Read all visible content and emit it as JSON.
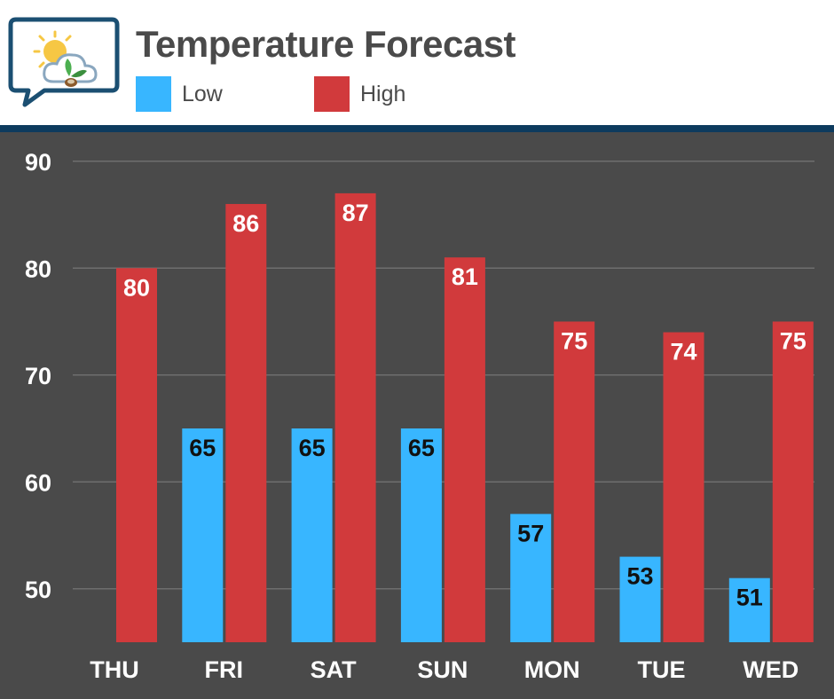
{
  "header": {
    "title": "Temperature Forecast",
    "logo_icon": "weather-leaf-logo-icon"
  },
  "colors": {
    "low": "#38b6ff",
    "high": "#d13a3c",
    "background": "#4a4a4a",
    "header_rule": "#0d3b5e",
    "title": "#4a4a4a"
  },
  "chart_data": {
    "type": "bar",
    "title": "Temperature Forecast",
    "xlabel": "",
    "ylabel": "",
    "categories": [
      "THU",
      "FRI",
      "SAT",
      "SUN",
      "MON",
      "TUE",
      "WED"
    ],
    "series": [
      {
        "name": "Low",
        "values": [
          null,
          65,
          65,
          65,
          57,
          53,
          51
        ]
      },
      {
        "name": "High",
        "values": [
          80,
          86,
          87,
          81,
          75,
          74,
          75
        ]
      }
    ],
    "yticks": [
      50,
      60,
      70,
      80,
      90
    ],
    "ylim": [
      45,
      91
    ],
    "grid": true,
    "legend": "top-left",
    "data_labels": true
  }
}
